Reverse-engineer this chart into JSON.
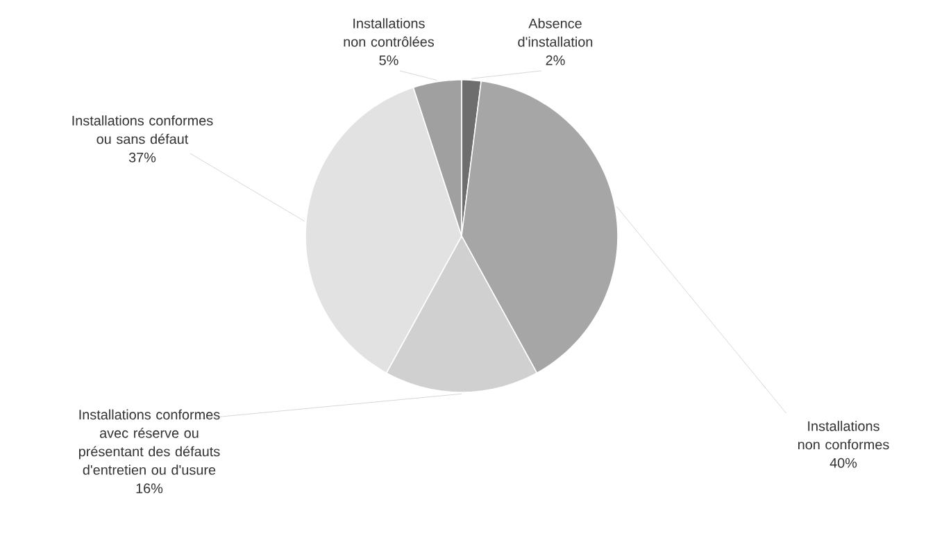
{
  "chart_data": {
    "type": "pie",
    "categories": [
      "Absence d'installation",
      "Installations non conformes",
      "Installations conformes avec réserve ou présentant des défauts d'entretien ou d'usure",
      "Installations conformes ou sans défaut",
      "Installations non contrôlées"
    ],
    "values": [
      2,
      40,
      16,
      37,
      5
    ],
    "value_labels": [
      "2%",
      "40%",
      "16%",
      "37%",
      "5%"
    ],
    "colors": [
      "#6e6e6e",
      "#a6a6a6",
      "#d0d0d0",
      "#e2e2e2",
      "#a0a0a0"
    ]
  }
}
